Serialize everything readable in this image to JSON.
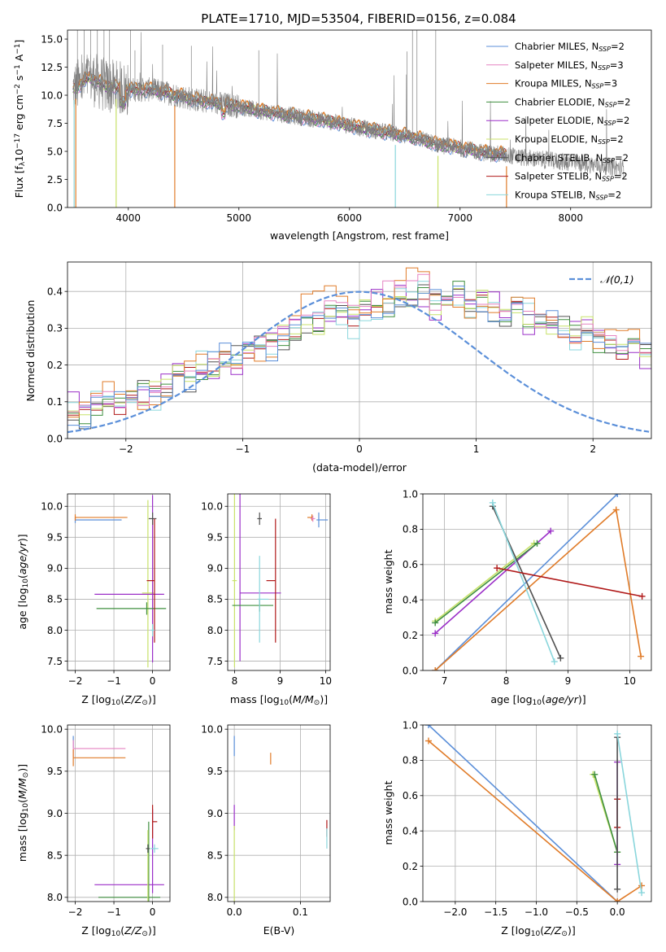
{
  "figure": {
    "title": "PLATE=1710, MJD=53504, FIBERID=0156, z=0.084"
  },
  "series": [
    {
      "key": "chabrier_miles",
      "label": "Chabrier MILES, N",
      "sub": "SSP",
      "suffix": "=2",
      "color": "#5b8fd9"
    },
    {
      "key": "salpeter_miles",
      "label": "Salpeter MILES, N",
      "sub": "SSP",
      "suffix": "=3",
      "color": "#e583c2"
    },
    {
      "key": "kroupa_miles",
      "label": "Kroupa MILES, N",
      "sub": "SSP",
      "suffix": "=3",
      "color": "#e07b28"
    },
    {
      "key": "chabrier_elodie",
      "label": "Chabrier ELODIE, N",
      "sub": "SSP",
      "suffix": "=2",
      "color": "#3f8f3f"
    },
    {
      "key": "salpeter_elodie",
      "label": "Salpeter ELODIE, N",
      "sub": "SSP",
      "suffix": "=2",
      "color": "#9b2fc8"
    },
    {
      "key": "kroupa_elodie",
      "label": "Kroupa ELODIE, N",
      "sub": "SSP",
      "suffix": "=2",
      "color": "#c8e26a"
    },
    {
      "key": "chabrier_stelib",
      "label": "Chabrier STELIB, N",
      "sub": "SSP",
      "suffix": "=2",
      "color": "#505050"
    },
    {
      "key": "salpeter_stelib",
      "label": "Salpeter STELIB, N",
      "sub": "SSP",
      "suffix": "=2",
      "color": "#b01818"
    },
    {
      "key": "kroupa_stelib",
      "label": "Kroupa STELIB, N",
      "sub": "SSP",
      "suffix": "=2",
      "color": "#8ad6dc"
    }
  ],
  "chart_data": [
    {
      "id": "spectrum",
      "type": "line",
      "xlabel": "wavelength [Angstrom, rest frame]",
      "ylabel_parts": [
        "Flux [f",
        "λ",
        "10",
        "−17",
        " erg cm",
        "−2",
        " s",
        "−1",
        " A",
        "−1",
        "]"
      ],
      "xlim": [
        3450,
        8730
      ],
      "ylim": [
        0,
        15.8
      ],
      "xticks": [
        4000,
        5000,
        6000,
        7000,
        8000
      ],
      "yticks": [
        0.0,
        2.5,
        5.0,
        7.5,
        10.0,
        12.5,
        15.0
      ],
      "ytick_labels": [
        "0.0",
        "2.5",
        "5.0",
        "7.5",
        "10.0",
        "12.5",
        "15.0"
      ],
      "legend": "top-right",
      "data_color": "#808080",
      "data_continuum": [
        [
          3500,
          10.5
        ],
        [
          3650,
          11.6
        ],
        [
          3800,
          10.8
        ],
        [
          4000,
          10.5
        ],
        [
          4200,
          10.5
        ],
        [
          4400,
          10.1
        ],
        [
          4600,
          9.6
        ],
        [
          4800,
          9.3
        ],
        [
          5000,
          9.0
        ],
        [
          5200,
          8.6
        ],
        [
          5400,
          8.3
        ],
        [
          5600,
          8.0
        ],
        [
          5800,
          7.7
        ],
        [
          6000,
          7.3
        ],
        [
          6200,
          6.9
        ],
        [
          6400,
          6.6
        ],
        [
          6600,
          6.2
        ],
        [
          6800,
          5.6
        ],
        [
          7000,
          5.3
        ],
        [
          7200,
          4.9
        ],
        [
          7400,
          4.7
        ],
        [
          7600,
          4.4
        ],
        [
          7800,
          4.2
        ],
        [
          8000,
          4.0
        ],
        [
          8200,
          3.8
        ],
        [
          8400,
          3.6
        ],
        [
          8480,
          3.5
        ]
      ],
      "model_end": 7420
    },
    {
      "id": "residuals",
      "type": "step",
      "xlabel": "(data-model)/error",
      "ylabel": "Normed distribution",
      "xlim": [
        -2.5,
        2.5
      ],
      "ylim": [
        0,
        0.48
      ],
      "xticks": [
        -2,
        -1,
        0,
        1,
        2
      ],
      "xtick_labels": [
        "−2",
        "−1",
        "0",
        "1",
        "2"
      ],
      "yticks": [
        0.0,
        0.1,
        0.2,
        0.3,
        0.4
      ],
      "ytick_labels": [
        "0.0",
        "0.1",
        "0.2",
        "0.3",
        "0.4"
      ],
      "grid": true,
      "reference": {
        "label": "𝒩(0,1)",
        "color": "#5b8fd9"
      },
      "legend": "top-right",
      "bin_start": -2.5,
      "bin_width": 0.1,
      "base_hist": [
        0.08,
        0.07,
        0.09,
        0.1,
        0.09,
        0.11,
        0.12,
        0.13,
        0.14,
        0.18,
        0.17,
        0.19,
        0.2,
        0.22,
        0.21,
        0.24,
        0.26,
        0.25,
        0.28,
        0.3,
        0.32,
        0.31,
        0.33,
        0.34,
        0.32,
        0.35,
        0.36,
        0.37,
        0.39,
        0.38,
        0.4,
        0.37,
        0.38,
        0.39,
        0.36,
        0.37,
        0.35,
        0.34,
        0.36,
        0.33,
        0.32,
        0.31,
        0.3,
        0.29,
        0.3,
        0.27,
        0.26,
        0.24,
        0.25,
        0.23,
        0.22,
        0.2,
        0.19,
        0.18,
        0.17,
        0.16,
        0.15,
        0.13,
        0.14,
        0.12,
        0.11,
        0.1,
        0.09,
        0.08,
        0.09,
        0.07,
        0.06,
        0.06,
        0.05,
        0.05,
        0.04,
        0.04,
        0.03,
        0.04,
        0.03,
        0.03,
        0.03,
        0.02,
        0.03,
        0.02
      ]
    },
    {
      "id": "age_vs_z",
      "type": "errorbar",
      "xlabel": "Z [log10(Z/Z⊙)]",
      "ylabel": "age  [log10(age/yr)]",
      "xlim": [
        -2.2,
        0.45
      ],
      "ylim": [
        7.35,
        10.2
      ],
      "xticks": [
        -2,
        -1,
        0
      ],
      "xtick_labels": [
        "−2",
        "−1",
        "0"
      ],
      "yticks": [
        7.5,
        8.0,
        8.5,
        9.0,
        9.5,
        10.0
      ],
      "ytick_labels": [
        "7.5",
        "8.0",
        "8.5",
        "9.0",
        "9.5",
        "10.0"
      ],
      "grid": true,
      "points": [
        {
          "s": 0,
          "x": -2.0,
          "y": 9.78,
          "xerr": [
            0.0,
            1.2
          ],
          "yerr": [
            0.05,
            0.05
          ]
        },
        {
          "s": 2,
          "x": -2.0,
          "y": 9.82,
          "xerr": [
            0.0,
            1.35
          ],
          "yerr": [
            0.05,
            0.05
          ]
        },
        {
          "s": 5,
          "x": -0.12,
          "y": 8.6,
          "xerr": [
            0.15,
            0.15
          ],
          "yerr": [
            1.2,
            1.5
          ]
        },
        {
          "s": 4,
          "x": 0.0,
          "y": 8.58,
          "xerr": [
            1.5,
            0.3
          ],
          "yerr": [
            1.1,
            1.6
          ]
        },
        {
          "s": 3,
          "x": -0.15,
          "y": 8.35,
          "xerr": [
            1.3,
            0.5
          ],
          "yerr": [
            0.1,
            0.1
          ]
        },
        {
          "s": 6,
          "x": 0.0,
          "y": 9.8,
          "xerr": [
            0.1,
            0.1
          ],
          "yerr": [
            0.1,
            0.1
          ]
        },
        {
          "s": 7,
          "x": 0.05,
          "y": 8.8,
          "xerr": [
            0.2,
            0.0
          ],
          "yerr": [
            1.0,
            1.0
          ]
        },
        {
          "s": 8,
          "x": 0.0,
          "y": 8.0,
          "xerr": [
            0.05,
            0.05
          ],
          "yerr": [
            0.1,
            0.1
          ]
        }
      ]
    },
    {
      "id": "age_vs_mass",
      "type": "errorbar",
      "xlabel": "mass [log10(M/M⊙)]",
      "ylabel": "",
      "xlim": [
        7.85,
        10.1
      ],
      "ylim": [
        7.35,
        10.2
      ],
      "xticks": [
        8,
        9,
        10
      ],
      "xtick_labels": [
        "8",
        "9",
        "10"
      ],
      "yticks": [
        7.5,
        8.0,
        8.5,
        9.0,
        9.5,
        10.0
      ],
      "ytick_labels": [
        "7.5",
        "8.0",
        "8.5",
        "9.0",
        "9.5",
        "10.0"
      ],
      "grid": true,
      "points": [
        {
          "s": 5,
          "x": 8.0,
          "y": 8.8,
          "xerr": [
            0.05,
            0.05
          ],
          "yerr": [
            1.4,
            1.4
          ]
        },
        {
          "s": 4,
          "x": 8.12,
          "y": 8.6,
          "xerr": [
            0.0,
            0.9
          ],
          "yerr": [
            1.1,
            1.6
          ]
        },
        {
          "s": 3,
          "x": 8.55,
          "y": 8.4,
          "xerr": [
            0.6,
            0.3
          ],
          "yerr": [
            0.1,
            0.1
          ]
        },
        {
          "s": 6,
          "x": 8.55,
          "y": 9.8,
          "xerr": [
            0.05,
            0.05
          ],
          "yerr": [
            0.1,
            0.1
          ]
        },
        {
          "s": 8,
          "x": 8.55,
          "y": 8.5,
          "xerr": [
            0.05,
            0.2
          ],
          "yerr": [
            0.7,
            0.7
          ]
        },
        {
          "s": 7,
          "x": 8.9,
          "y": 8.8,
          "xerr": [
            0.2,
            0.0
          ],
          "yerr": [
            1.0,
            1.0
          ]
        },
        {
          "s": 2,
          "x": 9.7,
          "y": 9.82,
          "xerr": [
            0.1,
            0.0
          ],
          "yerr": [
            0.05,
            0.05
          ]
        },
        {
          "s": 1,
          "x": 9.72,
          "y": 9.8,
          "xerr": [
            0.05,
            0.05
          ],
          "yerr": [
            0.05,
            0.05
          ]
        },
        {
          "s": 0,
          "x": 9.85,
          "y": 9.78,
          "xerr": [
            0.05,
            0.2
          ],
          "yerr": [
            0.12,
            0.12
          ]
        }
      ]
    },
    {
      "id": "weight_vs_age",
      "type": "line",
      "xlabel": "age  [log10(age/yr)]",
      "ylabel": "mass weight",
      "xlim": [
        6.65,
        10.35
      ],
      "ylim": [
        0,
        1
      ],
      "xticks": [
        7,
        8,
        9,
        10
      ],
      "xtick_labels": [
        "7",
        "8",
        "9",
        "10"
      ],
      "yticks": [
        0.0,
        0.2,
        0.4,
        0.6,
        0.8,
        1.0
      ],
      "ytick_labels": [
        "0.0",
        "0.2",
        "0.4",
        "0.6",
        "0.8",
        "1.0"
      ],
      "grid": true,
      "lines": [
        {
          "s": 0,
          "pts": [
            [
              6.85,
              0.0
            ],
            [
              9.8,
              1.0
            ]
          ]
        },
        {
          "s": 2,
          "pts": [
            [
              6.85,
              0.0
            ],
            [
              9.78,
              0.91
            ],
            [
              10.18,
              0.08
            ]
          ]
        },
        {
          "s": 4,
          "pts": [
            [
              6.85,
              0.21
            ],
            [
              8.72,
              0.79
            ]
          ]
        },
        {
          "s": 5,
          "pts": [
            [
              6.85,
              0.28
            ],
            [
              8.45,
              0.72
            ]
          ]
        },
        {
          "s": 3,
          "pts": [
            [
              6.85,
              0.27
            ],
            [
              8.5,
              0.72
            ]
          ]
        },
        {
          "s": 6,
          "pts": [
            [
              7.78,
              0.93
            ],
            [
              8.88,
              0.07
            ]
          ]
        },
        {
          "s": 8,
          "pts": [
            [
              7.78,
              0.95
            ],
            [
              8.78,
              0.05
            ]
          ]
        },
        {
          "s": 7,
          "pts": [
            [
              7.85,
              0.58
            ],
            [
              10.2,
              0.42
            ]
          ]
        }
      ]
    },
    {
      "id": "mass_vs_z",
      "type": "errorbar",
      "xlabel": "Z [log10(Z/Z⊙)]",
      "ylabel": "mass [log10(M/M⊙)]",
      "xlim": [
        -2.2,
        0.45
      ],
      "ylim": [
        7.95,
        10.05
      ],
      "xticks": [
        -2,
        -1,
        0
      ],
      "xtick_labels": [
        "−2",
        "−1",
        "0"
      ],
      "yticks": [
        8.0,
        8.5,
        9.0,
        9.5,
        10.0
      ],
      "ytick_labels": [
        "8.0",
        "8.5",
        "9.0",
        "9.5",
        "10.0"
      ],
      "grid": true,
      "points": [
        {
          "s": 0,
          "x": -2.05,
          "y": 9.85,
          "xerr": [
            0.0,
            0.0
          ],
          "yerr": [
            0.07,
            0.07
          ]
        },
        {
          "s": 1,
          "x": -2.05,
          "y": 9.77,
          "xerr": [
            0.0,
            1.35
          ],
          "yerr": [
            0.1,
            0.1
          ]
        },
        {
          "s": 2,
          "x": -2.05,
          "y": 9.66,
          "xerr": [
            0.0,
            1.35
          ],
          "yerr": [
            0.1,
            0.1
          ]
        },
        {
          "s": 4,
          "x": 0.0,
          "y": 8.15,
          "xerr": [
            1.5,
            0.3
          ],
          "yerr": [
            0.1,
            0.9
          ]
        },
        {
          "s": 3,
          "x": -0.1,
          "y": 8.0,
          "xerr": [
            1.3,
            0.3
          ],
          "yerr": [
            0.1,
            0.9
          ]
        },
        {
          "s": 5,
          "x": -0.12,
          "y": 8.0,
          "xerr": [
            0.0,
            0.0
          ],
          "yerr": [
            0.1,
            0.8
          ]
        },
        {
          "s": 7,
          "x": 0.0,
          "y": 8.9,
          "xerr": [
            0.0,
            0.12
          ],
          "yerr": [
            0.2,
            0.2
          ]
        },
        {
          "s": 8,
          "x": 0.05,
          "y": 8.58,
          "xerr": [
            0.1,
            0.1
          ],
          "yerr": [
            0.05,
            0.05
          ]
        },
        {
          "s": 6,
          "x": -0.12,
          "y": 8.58,
          "xerr": [
            0.05,
            0.05
          ],
          "yerr": [
            0.05,
            0.05
          ]
        }
      ]
    },
    {
      "id": "mass_vs_ebv",
      "type": "errorbar",
      "xlabel": "E(B-V)",
      "ylabel": "",
      "xlim": [
        -0.01,
        0.145
      ],
      "ylim": [
        7.95,
        10.05
      ],
      "xticks": [
        0.0,
        0.1
      ],
      "xtick_labels": [
        "0.0",
        "0.1"
      ],
      "yticks": [
        8.0,
        8.5,
        9.0,
        9.5,
        10.0
      ],
      "ytick_labels": [
        "8.0",
        "8.5",
        "9.0",
        "9.5",
        "10.0"
      ],
      "grid": true,
      "points": [
        {
          "s": 0,
          "x": 0.0,
          "y": 9.8,
          "xerr": [
            0.0,
            0.0
          ],
          "yerr": [
            0.12,
            0.12
          ]
        },
        {
          "s": 4,
          "x": 0.0,
          "y": 8.95,
          "xerr": [
            0.0,
            0.0
          ],
          "yerr": [
            0.15,
            0.15
          ]
        },
        {
          "s": 5,
          "x": 0.0,
          "y": 8.4,
          "xerr": [
            0.0,
            0.0
          ],
          "yerr": [
            0.45,
            0.45
          ]
        },
        {
          "s": 2,
          "x": 0.055,
          "y": 9.65,
          "xerr": [
            0.0,
            0.0
          ],
          "yerr": [
            0.07,
            0.07
          ]
        },
        {
          "s": 7,
          "x": 0.14,
          "y": 8.82,
          "xerr": [
            0.0,
            0.0
          ],
          "yerr": [
            0.1,
            0.1
          ]
        },
        {
          "s": 8,
          "x": 0.14,
          "y": 8.7,
          "xerr": [
            0.0,
            0.0
          ],
          "yerr": [
            0.12,
            0.12
          ]
        }
      ]
    },
    {
      "id": "weight_vs_z",
      "type": "line",
      "xlabel": "Z [log10(Z/Z⊙)]",
      "ylabel": "mass weight",
      "xlim": [
        -2.4,
        0.42
      ],
      "ylim": [
        0,
        1
      ],
      "xticks": [
        -2.0,
        -1.5,
        -1.0,
        -0.5,
        0.0
      ],
      "xtick_labels": [
        "−2.0",
        "−1.5",
        "−1.0",
        "−0.5",
        "0.0"
      ],
      "yticks": [
        0.0,
        0.2,
        0.4,
        0.6,
        0.8,
        1.0
      ],
      "ytick_labels": [
        "0.0",
        "0.2",
        "0.4",
        "0.6",
        "0.8",
        "1.0"
      ],
      "grid": true,
      "lines": [
        {
          "s": 0,
          "pts": [
            [
              -2.33,
              1.0
            ],
            [
              0.0,
              0.0
            ]
          ]
        },
        {
          "s": 2,
          "pts": [
            [
              -2.33,
              0.91
            ],
            [
              0.0,
              0.0
            ],
            [
              0.3,
              0.09
            ]
          ]
        },
        {
          "s": 5,
          "pts": [
            [
              -0.3,
              0.72
            ],
            [
              0.0,
              0.28
            ]
          ]
        },
        {
          "s": 3,
          "pts": [
            [
              -0.28,
              0.72
            ],
            [
              0.0,
              0.28
            ]
          ]
        },
        {
          "s": 4,
          "pts": [
            [
              0.0,
              0.79
            ],
            [
              0.0,
              0.21
            ]
          ]
        },
        {
          "s": 7,
          "pts": [
            [
              0.0,
              0.58
            ],
            [
              0.0,
              0.42
            ]
          ]
        },
        {
          "s": 6,
          "pts": [
            [
              0.0,
              0.93
            ],
            [
              0.0,
              0.07
            ]
          ]
        },
        {
          "s": 8,
          "pts": [
            [
              0.0,
              0.95
            ],
            [
              0.3,
              0.05
            ]
          ]
        }
      ]
    }
  ]
}
